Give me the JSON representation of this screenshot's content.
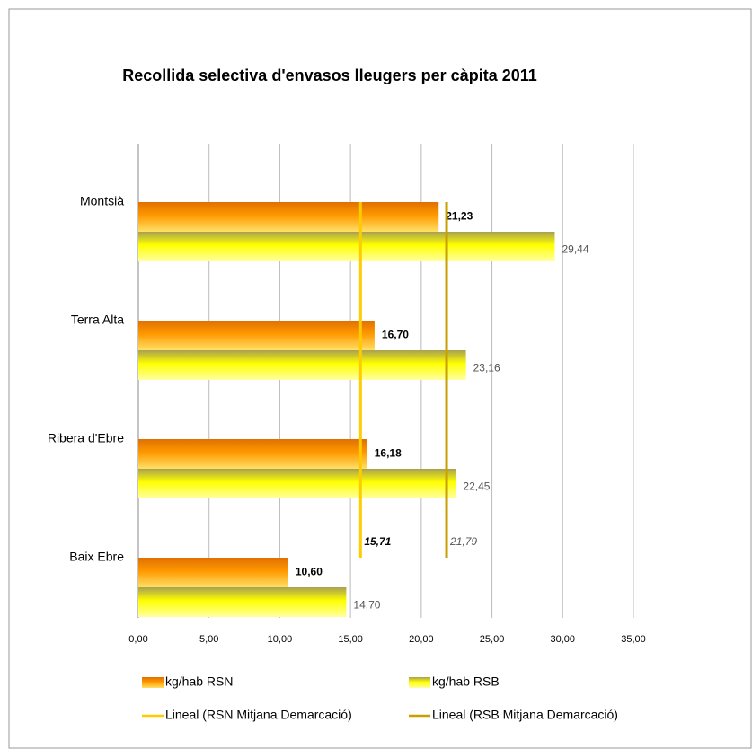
{
  "chart_data": {
    "type": "hbar",
    "title": "Recollida selectiva d'envasos lleugers per càpita 2011",
    "categories": [
      "Montsià",
      "Terra Alta",
      "Ribera d'Ebre",
      "Baix Ebre"
    ],
    "series": [
      {
        "name": "kg/hab RSN",
        "color": "#ff9900",
        "values": [
          21.23,
          16.7,
          16.18,
          10.6
        ],
        "value_labels": [
          "21,23",
          "16,70",
          "16,18",
          "10,60"
        ]
      },
      {
        "name": "kg/hab RSB",
        "color": "#ffff00",
        "values": [
          29.44,
          23.16,
          22.45,
          14.7
        ],
        "value_labels": [
          "29,44",
          "23,16",
          "22,45",
          "14,70"
        ]
      }
    ],
    "reference_lines": [
      {
        "name": "Lineal (RSN Mitjana Demarcació)",
        "value": 15.71,
        "value_label": "15,71",
        "color": "#ffcc00"
      },
      {
        "name": "Lineal (RSB Mitjana Demarcació)",
        "value": 21.79,
        "value_label": "21,79",
        "color": "#c8a000"
      }
    ],
    "xlim": [
      0,
      35
    ],
    "xticks": [
      {
        "value": 0,
        "label": "0,00"
      },
      {
        "value": 5,
        "label": "5,00"
      },
      {
        "value": 10,
        "label": "10,00"
      },
      {
        "value": 15,
        "label": "15,00"
      },
      {
        "value": 20,
        "label": "20,00"
      },
      {
        "value": 25,
        "label": "25,00"
      },
      {
        "value": 30,
        "label": "30,00"
      },
      {
        "value": 35,
        "label": "35,00"
      }
    ],
    "grid": true
  }
}
